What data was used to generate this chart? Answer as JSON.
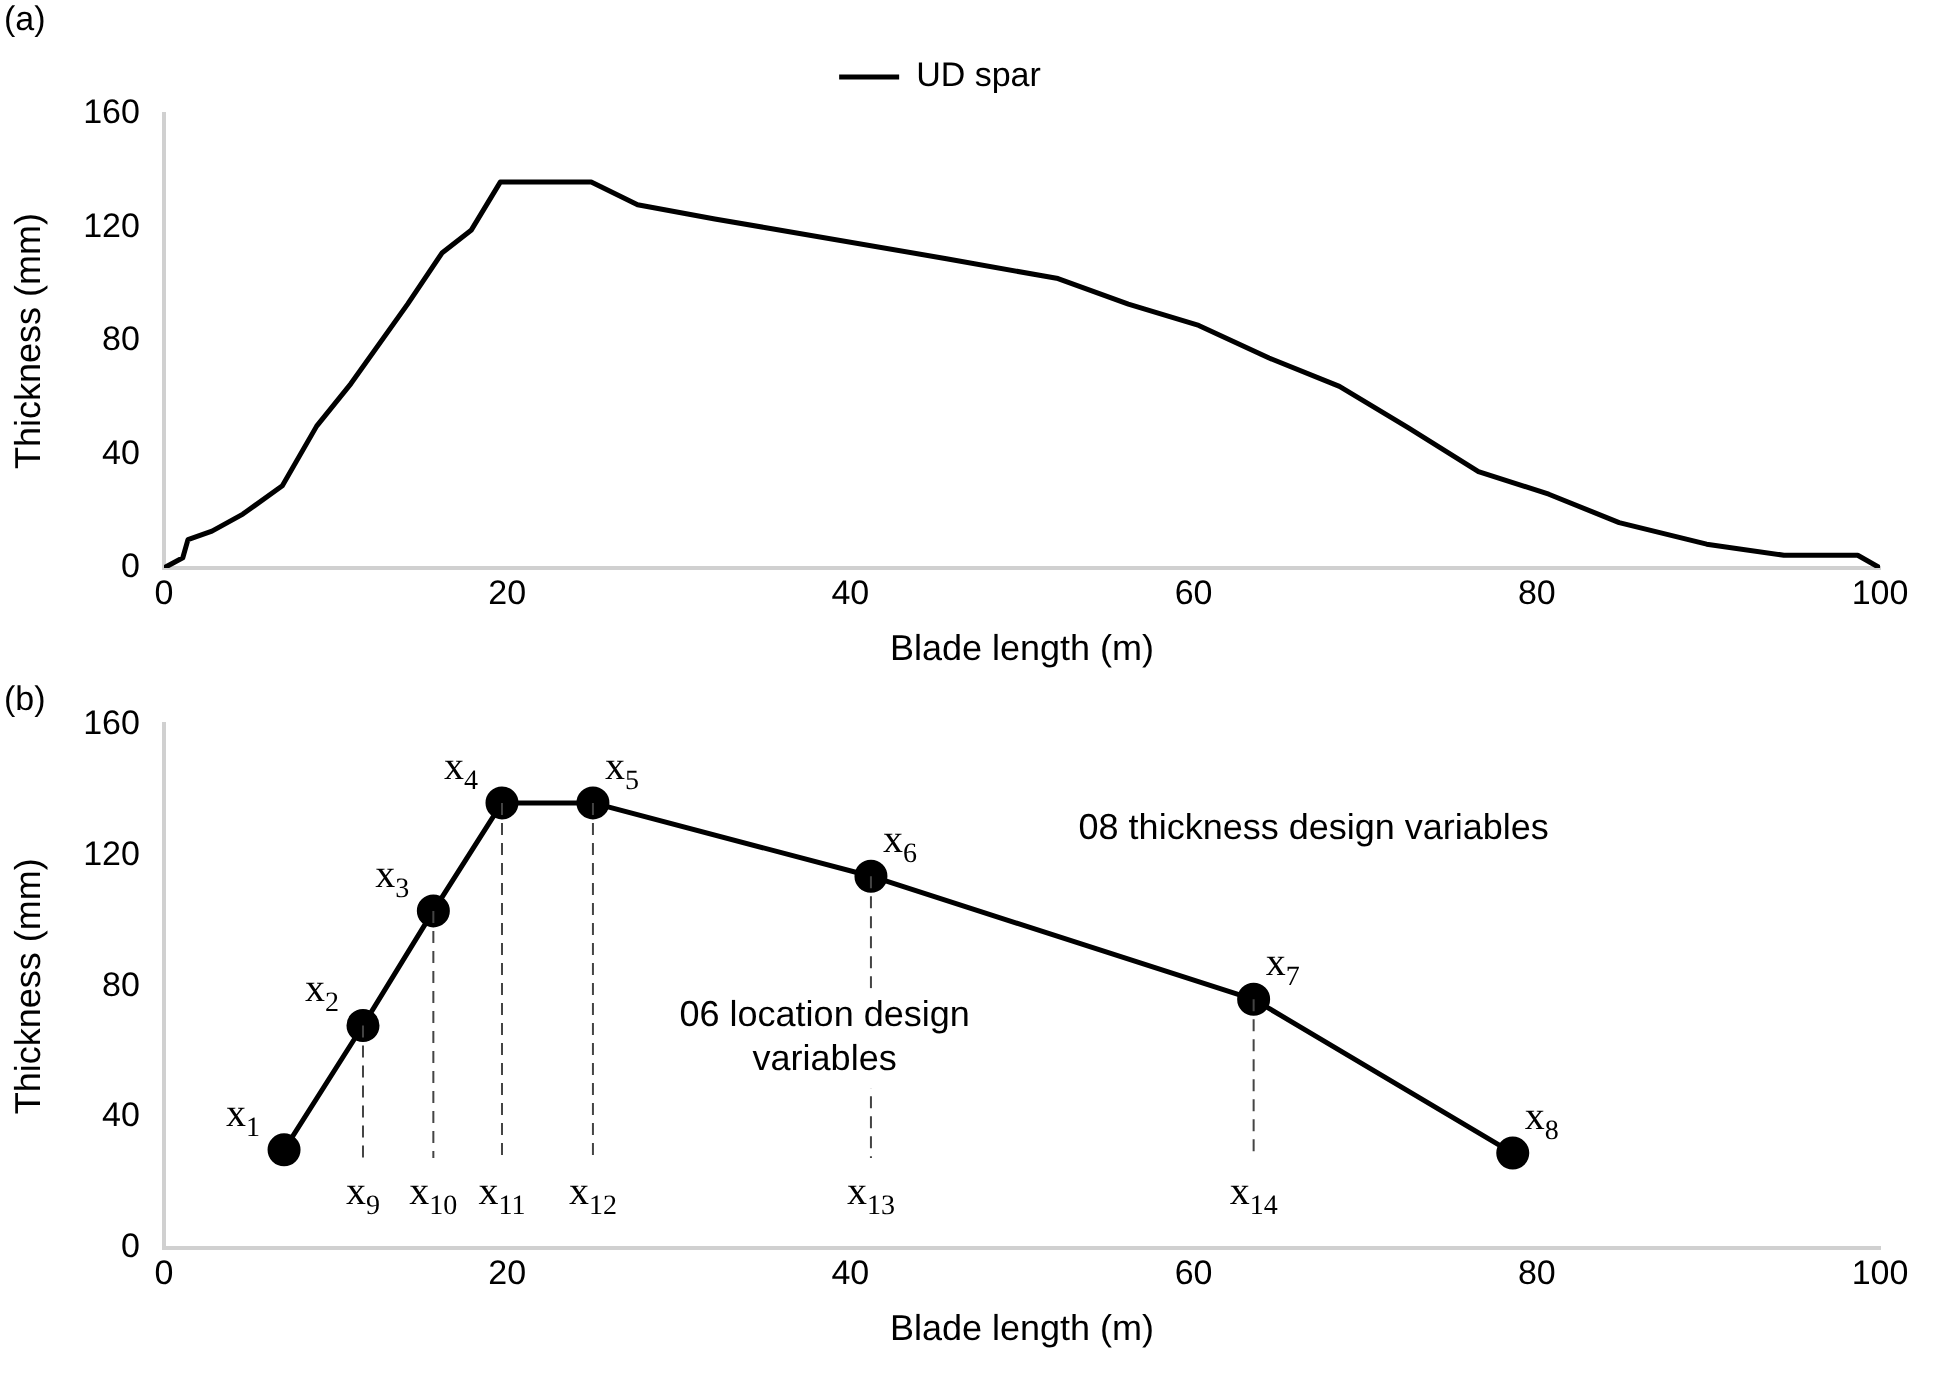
{
  "chart_data": [
    {
      "type": "line",
      "title": "(a)",
      "xlabel": "Blade length (m)",
      "ylabel": "Thickness (mm)",
      "xlim": [
        0,
        100
      ],
      "xticks": [
        0,
        20,
        40,
        60,
        80,
        100
      ],
      "ylim": [
        0,
        160
      ],
      "yticks": [
        0,
        40,
        80,
        120,
        160
      ],
      "grid": false,
      "legend": "top",
      "marker": "none",
      "line_style": "solid",
      "series": [
        {
          "name": "UD spar",
          "color": "#000000",
          "x": [
            0,
            1.1,
            1.4,
            2.8,
            4.6,
            6.9,
            8.9,
            10.9,
            14.2,
            16.2,
            17.9,
            19.6,
            24.9,
            27.6,
            32.1,
            35,
            45.6,
            52.1,
            56.2,
            60.3,
            64.4,
            68.5,
            72.5,
            76.6,
            80.7,
            84.8,
            89.9,
            94.4,
            98.7,
            100
          ],
          "values": [
            0,
            3.6,
            10,
            13,
            19,
            29,
            50,
            65,
            93,
            111,
            119,
            136,
            136,
            128,
            123,
            120,
            109,
            102,
            93,
            85.5,
            74,
            64,
            49.5,
            34,
            26,
            16,
            8.4,
            4.5,
            4.5,
            0
          ]
        }
      ]
    },
    {
      "type": "line",
      "title": "(b)",
      "xlabel": "Blade length (m)",
      "ylabel": "Thickness (mm)",
      "xlim": [
        0,
        100
      ],
      "xticks": [
        0,
        20,
        40,
        60,
        80,
        100
      ],
      "ylim": [
        0,
        160
      ],
      "yticks": [
        0,
        40,
        80,
        120,
        160
      ],
      "grid": false,
      "marker": "circle",
      "line_style": "solid",
      "series": [
        {
          "color": "#000000",
          "x": [
            7,
            11.6,
            15.7,
            19.7,
            25,
            41.2,
            63.5,
            78.6
          ],
          "values": [
            30,
            68,
            103,
            136,
            136,
            113.6,
            76,
            29
          ]
        }
      ],
      "ref_lines": [
        {
          "axis": "x",
          "value": 11.6,
          "label": "x$_{9}$",
          "line_style": "dashed"
        },
        {
          "axis": "x",
          "value": 15.7,
          "label": "x$_{10}$",
          "line_style": "dashed"
        },
        {
          "axis": "x",
          "value": 19.7,
          "label": "x$_{11}$",
          "line_style": "dashed"
        },
        {
          "axis": "x",
          "value": 25,
          "label": "x$_{12}$",
          "line_style": "dashed"
        },
        {
          "axis": "x",
          "value": 41.2,
          "label": "x$_{13}$",
          "line_style": "dashed"
        },
        {
          "axis": "x",
          "value": 63.5,
          "label": "x$_{14}$",
          "line_style": "dashed"
        }
      ],
      "annotations": [
        {
          "text": "x$_{1}$",
          "x": 7,
          "y": 30
        },
        {
          "text": "x$_{2}$",
          "x": 11.6,
          "y": 68
        },
        {
          "text": "x$_{3}$",
          "x": 15.7,
          "y": 103
        },
        {
          "text": "x$_{4}$",
          "x": 19.7,
          "y": 136
        },
        {
          "text": "x$_{5}$",
          "x": 25,
          "y": 136
        },
        {
          "text": "x$_{6}$",
          "x": 41.2,
          "y": 113.6
        },
        {
          "text": "x$_{7}$",
          "x": 63.5,
          "y": 76
        },
        {
          "text": "x$_{8}$",
          "x": 78.6,
          "y": 29
        },
        "06 location design variables",
        "08 thickness design variables"
      ]
    }
  ]
}
